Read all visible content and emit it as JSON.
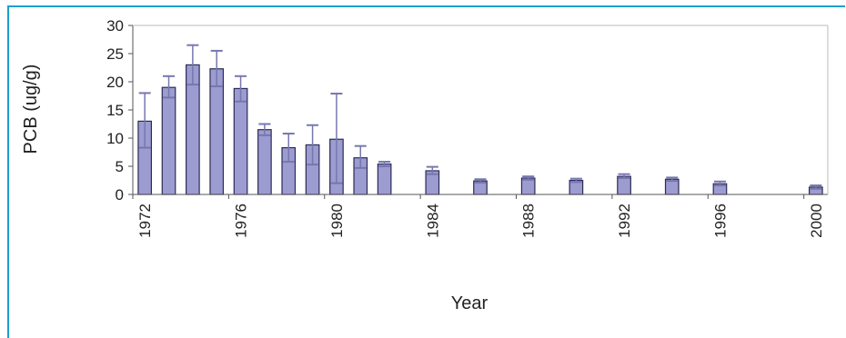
{
  "chart_data": {
    "type": "bar",
    "title": "",
    "xlabel": "Year",
    "ylabel": "PCB (ug/g)",
    "ylim": [
      0,
      30
    ],
    "yticks": [
      0,
      5,
      10,
      15,
      20,
      25,
      30
    ],
    "xlim": [
      1972,
      2001
    ],
    "xticks": [
      "1972",
      "1976",
      "1980",
      "1984",
      "1988",
      "1992",
      "1996",
      "2000"
    ],
    "grid": false,
    "legend": "none",
    "colors": {
      "bar": "#9c9cd0",
      "bar_edge": "#2b2b55",
      "error": "#7777b0",
      "axis": "#555555"
    },
    "x": [
      1972,
      1973,
      1974,
      1975,
      1976,
      1977,
      1978,
      1979,
      1980,
      1981,
      1982,
      1984,
      1986,
      1988,
      1990,
      1992,
      1994,
      1996,
      2000
    ],
    "values": [
      13,
      19,
      23,
      22.3,
      18.8,
      11.5,
      8.3,
      8.8,
      9.8,
      6.5,
      5.4,
      4.2,
      2.4,
      2.9,
      2.5,
      3.2,
      2.7,
      1.9,
      1.3
    ],
    "error_high": [
      18,
      21,
      26.5,
      25.5,
      21,
      12.5,
      10.8,
      12.3,
      17.9,
      8.6,
      5.8,
      4.9,
      2.7,
      3.2,
      2.8,
      3.6,
      3.0,
      2.3,
      1.6
    ],
    "error_low": [
      8.3,
      17.2,
      19.5,
      19.2,
      16.5,
      10.5,
      5.8,
      5.3,
      2.0,
      4.7,
      5.0,
      3.6,
      2.1,
      2.6,
      2.2,
      2.9,
      2.4,
      1.6,
      1.0
    ]
  }
}
